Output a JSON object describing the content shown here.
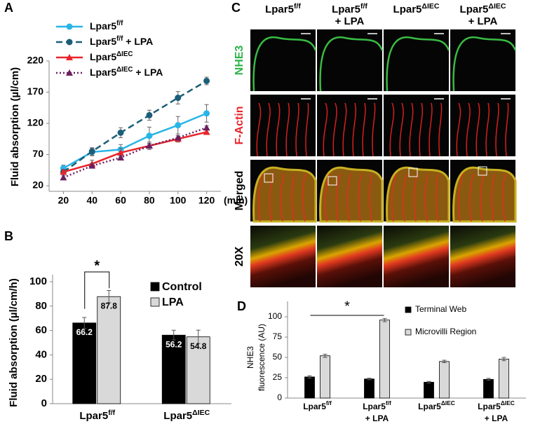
{
  "panel_labels": [
    "A",
    "B",
    "C",
    "D"
  ],
  "chart_data": [
    {
      "type": "line",
      "ylabel": "Fluid absorption (µl/cm)",
      "x_unit": "(min)",
      "x": [
        20,
        40,
        60,
        80,
        100,
        120
      ],
      "xlim": [
        10,
        130
      ],
      "xticks": [
        20,
        40,
        60,
        80,
        100,
        120
      ],
      "ylim": [
        20,
        220
      ],
      "yticks": [
        20,
        70,
        120,
        170,
        220
      ],
      "series": [
        {
          "name": "Lpar5f/f",
          "color": "#29b5e8",
          "dash": "solid",
          "marker": "circle",
          "values": [
            48,
            74,
            78,
            100,
            117,
            136
          ],
          "errors": [
            5,
            6,
            8,
            14,
            14,
            14
          ]
        },
        {
          "name": "Lpar5f/f + LPA",
          "color": "#1b5e78",
          "dash": "dashed",
          "marker": "circle",
          "values": [
            42,
            75,
            105,
            133,
            161,
            188
          ],
          "errors": [
            4,
            6,
            8,
            8,
            10,
            6
          ]
        },
        {
          "name": "Lpar5ΔIEC",
          "color": "#e8242a",
          "dash": "solid",
          "marker": "triangle",
          "values": [
            42,
            55,
            73,
            84,
            95,
            106
          ],
          "errors": [
            4,
            6,
            7,
            6,
            5,
            4
          ]
        },
        {
          "name": "Lpar5ΔIEC + LPA",
          "color": "#6b1f5f",
          "dash": "dotted",
          "marker": "triangle",
          "values": [
            33,
            52,
            65,
            84,
            97,
            113
          ],
          "errors": [
            3,
            4,
            3,
            4,
            3,
            3
          ]
        }
      ]
    },
    {
      "type": "bar",
      "ylabel": "Fluid absorption (µl/cm/h)",
      "categories": [
        "Lpar5f/f",
        "Lpar5ΔIEC"
      ],
      "ylim": [
        0,
        100
      ],
      "yticks": [
        0,
        20,
        40,
        60,
        80,
        100
      ],
      "value_labels_shown": true,
      "annotation": "*",
      "series": [
        {
          "name": "Control",
          "color": "#000000",
          "values": [
            66.2,
            56.2
          ],
          "errors": [
            4.5,
            4
          ]
        },
        {
          "name": "LPA",
          "color": "#d9d9d9",
          "values": [
            87.8,
            54.8
          ],
          "errors": [
            5,
            5.5
          ]
        }
      ]
    },
    {
      "type": "bar",
      "ylabel": [
        "NHE3",
        "fluorescence (AU)"
      ],
      "categories": [
        "Lpar5f/f",
        "Lpar5f/f + LPA",
        "Lpar5ΔIEC",
        "Lpar5ΔIEC + LPA"
      ],
      "ylim": [
        0,
        100
      ],
      "yticks": [
        0,
        25,
        50,
        75,
        100
      ],
      "annotation": "*",
      "series": [
        {
          "name": "Terminal Web",
          "color": "#000000",
          "values": [
            26,
            23.5,
            19.5,
            23
          ],
          "errors": [
            1.5,
            1,
            1,
            1.2
          ]
        },
        {
          "name": "Microvilli Region",
          "color": "#d9d9d9",
          "values": [
            52,
            96,
            45,
            48
          ],
          "errors": [
            2,
            2,
            1.5,
            2
          ]
        }
      ]
    }
  ],
  "micrographs": {
    "columns": [
      "Lpar5f/f",
      "Lpar5f/f + LPA",
      "Lpar5ΔIEC",
      "Lpar5ΔIEC + LPA"
    ],
    "rows": [
      {
        "label": "NHE3",
        "color": "#2db34a"
      },
      {
        "label": "F-Actin",
        "color": "#e8242a"
      },
      {
        "label": "Merged",
        "color": "#000000"
      },
      {
        "label": "20X",
        "color": "#000000"
      }
    ]
  }
}
